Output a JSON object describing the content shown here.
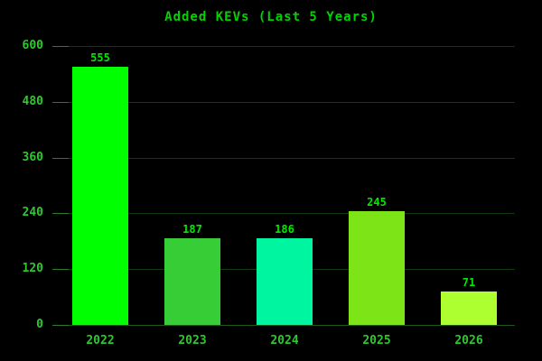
{
  "chart_data": {
    "type": "bar",
    "title": "Added KEVs (Last 5 Years)",
    "categories": [
      "2022",
      "2023",
      "2024",
      "2025",
      "2026"
    ],
    "values": [
      555,
      187,
      186,
      245,
      71
    ],
    "value_labels": [
      "555",
      "187",
      "186",
      "245",
      "71"
    ],
    "bar_colors": [
      "#00ff00",
      "#37cd37",
      "#00f5a0",
      "#7de517",
      "#adff2f"
    ],
    "xlabel": "",
    "ylabel": "",
    "ylim": [
      0,
      600
    ],
    "yticks": [
      0,
      120,
      240,
      360,
      480,
      600
    ],
    "grid": true,
    "legend": "none",
    "colors": {
      "background": "#000000",
      "title_text": "#00d400",
      "axis_text": "#2fc72f",
      "value_text": "#00ea00",
      "gridline": "#0e3a0e",
      "axis_line": "#1c5a1c",
      "tick_mark": "#2d7a2d"
    }
  }
}
